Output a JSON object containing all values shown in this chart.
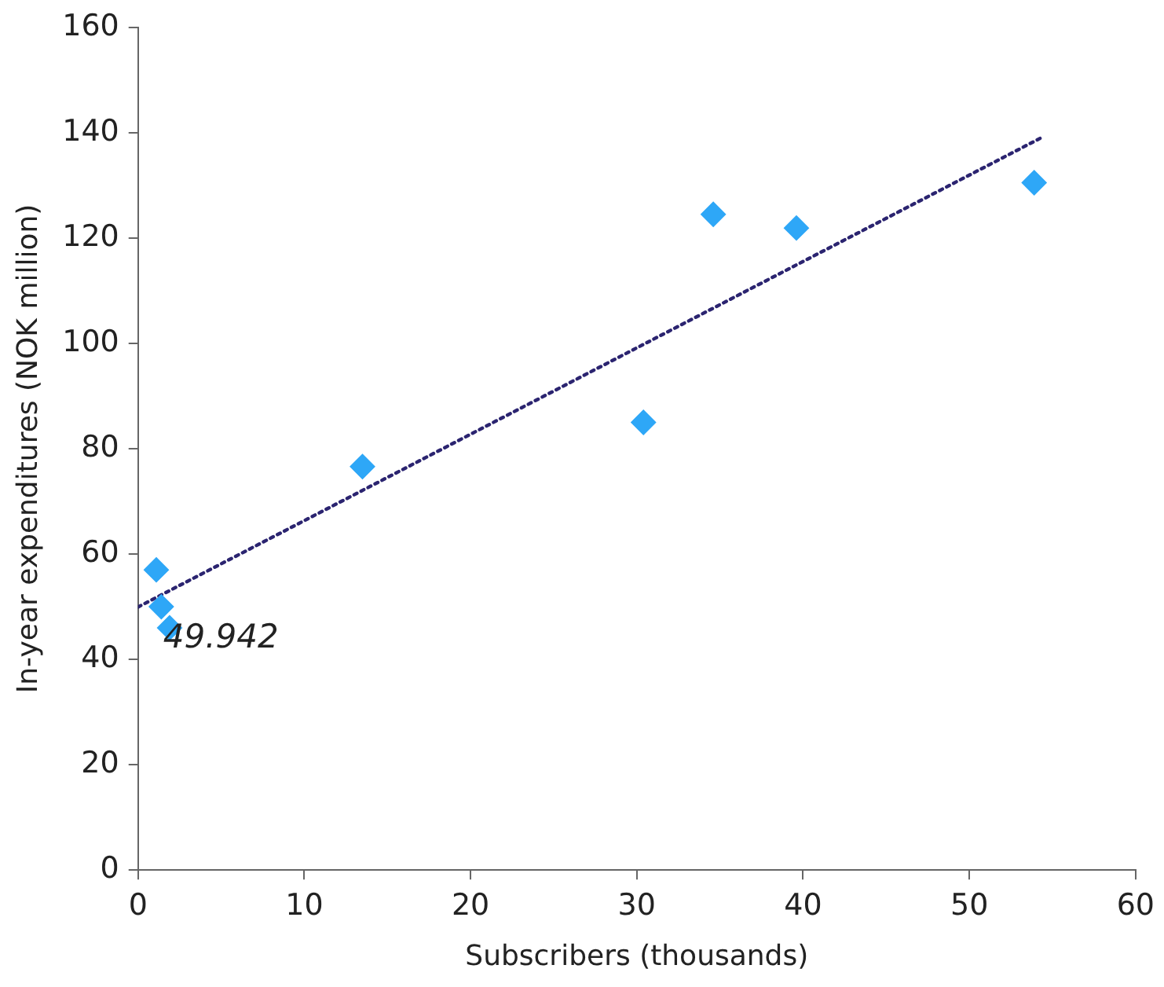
{
  "chart_data": {
    "type": "scatter",
    "xlabel": "Subscribers (thousands)",
    "ylabel": "In-year expenditures (NOK million)",
    "xlim": [
      0,
      60
    ],
    "xticks": [
      0,
      10,
      20,
      30,
      40,
      50,
      60
    ],
    "ylim": [
      0,
      160
    ],
    "yticks": [
      0,
      20,
      40,
      60,
      80,
      100,
      120,
      140,
      160
    ],
    "grid": false,
    "legend": false,
    "series": [
      {
        "color": "#2ea7f7",
        "marker": "diamond",
        "x": [
          1.1,
          1.4,
          1.9,
          13.5,
          30.4,
          34.6,
          39.6,
          53.9
        ],
        "values": [
          57,
          50,
          46,
          76.6,
          85,
          124.5,
          121.9,
          130.5
        ]
      },
      {
        "type": "line",
        "color": "#2b2470",
        "marker": "none",
        "line_style": "dotted",
        "x": [
          0,
          54.3
        ],
        "values": [
          49.942,
          139
        ]
      }
    ],
    "annotations": [
      {
        "text": "49.942",
        "x": 0,
        "y": 49.942
      }
    ]
  }
}
